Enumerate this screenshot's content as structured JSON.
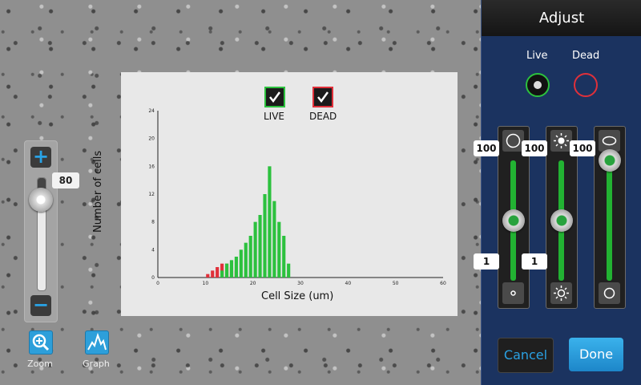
{
  "zoom": {
    "plus_label": "+",
    "minus_label": "−",
    "value": "80",
    "level": 80
  },
  "tools": [
    {
      "label": "Zoom",
      "icon": "zoom-in-icon"
    },
    {
      "label": "Graph",
      "icon": "histogram-icon"
    }
  ],
  "legend": [
    {
      "label": "LIVE",
      "color": "#2cc13e"
    },
    {
      "label": "DEAD",
      "color": "#e0303a"
    }
  ],
  "chart_data": {
    "type": "bar",
    "xlabel": "Cell Size (um)",
    "ylabel": "Number of cells",
    "xlim": [
      0,
      60
    ],
    "ylim": [
      0,
      24
    ],
    "xticks": [
      "0",
      "10",
      "20",
      "30",
      "40",
      "50",
      "60"
    ],
    "yticks": [
      "0",
      "4",
      "8",
      "12",
      "16",
      "20",
      "24"
    ],
    "series": [
      {
        "name": "DEAD",
        "color": "#e0303a",
        "x": [
          10.5,
          11.5,
          12.5,
          13.5,
          14.5,
          15.5,
          16.5
        ],
        "values": [
          0.5,
          1,
          1.5,
          2,
          2,
          1.5,
          1
        ]
      },
      {
        "name": "LIVE",
        "color": "#2cc13e",
        "x": [
          13.5,
          14.5,
          15.5,
          16.5,
          17.5,
          18.5,
          19.5,
          20.5,
          21.5,
          22.5,
          23.5,
          24.5,
          25.5,
          26.5,
          27.5
        ],
        "values": [
          1,
          2,
          2.5,
          3,
          4,
          5,
          6,
          8,
          9,
          12,
          16,
          11,
          8,
          6,
          2
        ]
      }
    ]
  },
  "adjust": {
    "title": "Adjust",
    "live_label": "Live",
    "dead_label": "Dead",
    "live_color": "#2cc13e",
    "dead_color": "#e0303a",
    "sliders": [
      {
        "top_icon": "circle-outline-icon",
        "bottom_icon": "small-dot-icon",
        "top_value": "100",
        "bottom_value": "1",
        "level": 0.5
      },
      {
        "top_icon": "brightness-high-icon",
        "bottom_icon": "brightness-low-icon",
        "top_value": "100",
        "bottom_value": "1",
        "level": 0.5
      },
      {
        "top_icon": "ellipse-icon",
        "bottom_icon": "circle-icon",
        "top_value": "100",
        "level": 1.0
      }
    ],
    "cancel_label": "Cancel",
    "done_label": "Done"
  }
}
